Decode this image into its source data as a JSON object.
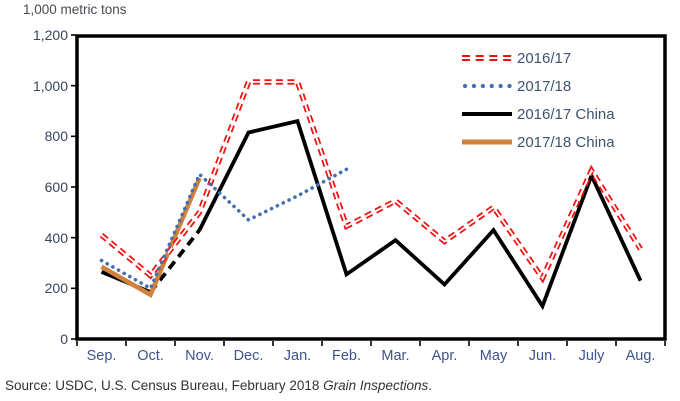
{
  "title": "1,000 metric tons",
  "source": {
    "prefix": "Source: USDC, U.S. Census Bureau, February 2018 ",
    "italic": "Grain Inspections",
    "suffix": "."
  },
  "colors": {
    "red_series": "#ee1111",
    "blue_series": "#4470ae",
    "black_series": "#000000",
    "orange_series": "#d0813c",
    "axis_border": "#000000",
    "month_label": "#3d5490",
    "ytick_label": "#3a4560",
    "legend_text": "#3e536f"
  },
  "chart_data": {
    "type": "line",
    "title": "1,000 metric tons",
    "xlabel": "",
    "ylabel": "1,000 metric tons",
    "categories": [
      "Sep.",
      "Oct.",
      "Nov.",
      "Dec.",
      "Jan.",
      "Feb.",
      "Mar.",
      "Apr.",
      "May",
      "Jun.",
      "July",
      "Aug."
    ],
    "ylim": [
      0,
      1200
    ],
    "ytick_interval": 200,
    "ytick_labels": [
      "0",
      "200",
      "400",
      "600",
      "800",
      "1,000",
      "1,200"
    ],
    "grid": false,
    "legend_position": "top-right-inside",
    "series": [
      {
        "name": "2016/17",
        "style": "double-dash",
        "color": "#ee1111",
        "values": [
          410,
          250,
          500,
          1015,
          1015,
          445,
          545,
          385,
          520,
          240,
          665,
          355
        ]
      },
      {
        "name": "2017/18",
        "style": "dotted",
        "color": "#4470ae",
        "values": [
          310,
          200,
          650,
          470,
          565,
          670
        ]
      },
      {
        "name": "2016/17 China",
        "style": "solid",
        "color": "#000000",
        "dashed_segment": [
          1,
          2
        ],
        "values": [
          265,
          185,
          430,
          815,
          860,
          255,
          390,
          215,
          430,
          130,
          645,
          230
        ]
      },
      {
        "name": "2017/18 China",
        "style": "solid-thick",
        "color": "#d0813c",
        "values": [
          285,
          175,
          635
        ]
      }
    ]
  }
}
